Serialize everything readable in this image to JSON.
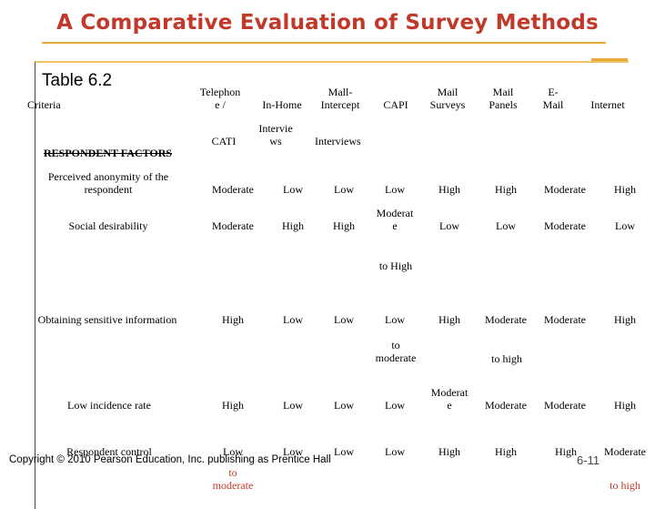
{
  "title": "A Comparative Evaluation of Survey Methods",
  "table_label": "Table 6.2",
  "criteria_label": "Criteria",
  "section_label": "RESPONDENT FACTORS",
  "columns": {
    "telephone": "Telephon\ne /",
    "cati": "CATI",
    "in_home": "In-Home",
    "interviews": "Intervie\nws",
    "mall_intercept": "Mall-\nIntercept",
    "mall_interviews": "Interviews",
    "capi": "CAPI",
    "mail_surveys": "Mail\nSurveys",
    "mail_panels": "Mail\nPanels",
    "email": "E-\nMail",
    "internet": "Internet"
  },
  "rows": [
    {
      "label": "Perceived anonymity of the\nrespondent",
      "values": [
        "Moderate",
        "Low",
        "Low",
        "Low",
        "High",
        "High",
        "Moderate",
        "High"
      ]
    },
    {
      "label": "Social desirability",
      "values": [
        "Moderate",
        "High",
        "High",
        "Moderat\ne",
        "Low",
        "Low",
        "Moderate",
        "Low"
      ],
      "note": "to High"
    },
    {
      "label": "Obtaining sensitive information",
      "values": [
        "High",
        "Low",
        "Low",
        "Low",
        "High",
        "Moderate",
        "Moderate",
        "High"
      ],
      "note": "to\nmoderate",
      "note2": "to high"
    },
    {
      "label": "Low incidence rate",
      "values": [
        "High",
        "Low",
        "Low",
        "Low",
        "Moderat\ne",
        "Moderate",
        "Moderate",
        "High"
      ]
    },
    {
      "label": "Respondent control",
      "values": [
        "Low",
        "Low",
        "Low",
        "Low",
        "High",
        "High",
        "High",
        "Moderate"
      ],
      "note": "to\nmoderate",
      "note2": "to high"
    }
  ],
  "footer": "Copyright © 2010 Pearson Education, Inc. publishing as Prentice Hall",
  "page_number": "6-11"
}
